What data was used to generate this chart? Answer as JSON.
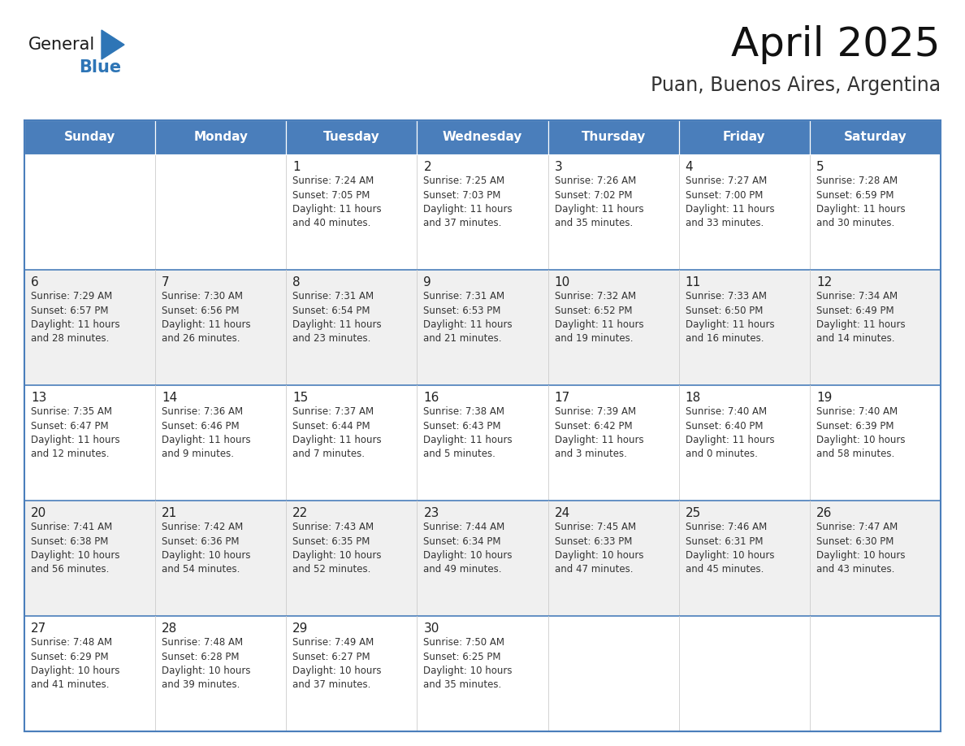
{
  "title": "April 2025",
  "subtitle": "Puan, Buenos Aires, Argentina",
  "header_color": "#4A7EBB",
  "header_text_color": "#FFFFFF",
  "border_color": "#4A7EBB",
  "row_separator_color": "#4A7EBB",
  "col_separator_color": "#CCCCCC",
  "text_color": "#333333",
  "day_num_color": "#222222",
  "row_bg_even": "#FFFFFF",
  "row_bg_odd": "#F0F0F0",
  "days_of_week": [
    "Sunday",
    "Monday",
    "Tuesday",
    "Wednesday",
    "Thursday",
    "Friday",
    "Saturday"
  ],
  "weeks": [
    [
      {
        "day": "",
        "info": ""
      },
      {
        "day": "",
        "info": ""
      },
      {
        "day": "1",
        "info": "Sunrise: 7:24 AM\nSunset: 7:05 PM\nDaylight: 11 hours\nand 40 minutes."
      },
      {
        "day": "2",
        "info": "Sunrise: 7:25 AM\nSunset: 7:03 PM\nDaylight: 11 hours\nand 37 minutes."
      },
      {
        "day": "3",
        "info": "Sunrise: 7:26 AM\nSunset: 7:02 PM\nDaylight: 11 hours\nand 35 minutes."
      },
      {
        "day": "4",
        "info": "Sunrise: 7:27 AM\nSunset: 7:00 PM\nDaylight: 11 hours\nand 33 minutes."
      },
      {
        "day": "5",
        "info": "Sunrise: 7:28 AM\nSunset: 6:59 PM\nDaylight: 11 hours\nand 30 minutes."
      }
    ],
    [
      {
        "day": "6",
        "info": "Sunrise: 7:29 AM\nSunset: 6:57 PM\nDaylight: 11 hours\nand 28 minutes."
      },
      {
        "day": "7",
        "info": "Sunrise: 7:30 AM\nSunset: 6:56 PM\nDaylight: 11 hours\nand 26 minutes."
      },
      {
        "day": "8",
        "info": "Sunrise: 7:31 AM\nSunset: 6:54 PM\nDaylight: 11 hours\nand 23 minutes."
      },
      {
        "day": "9",
        "info": "Sunrise: 7:31 AM\nSunset: 6:53 PM\nDaylight: 11 hours\nand 21 minutes."
      },
      {
        "day": "10",
        "info": "Sunrise: 7:32 AM\nSunset: 6:52 PM\nDaylight: 11 hours\nand 19 minutes."
      },
      {
        "day": "11",
        "info": "Sunrise: 7:33 AM\nSunset: 6:50 PM\nDaylight: 11 hours\nand 16 minutes."
      },
      {
        "day": "12",
        "info": "Sunrise: 7:34 AM\nSunset: 6:49 PM\nDaylight: 11 hours\nand 14 minutes."
      }
    ],
    [
      {
        "day": "13",
        "info": "Sunrise: 7:35 AM\nSunset: 6:47 PM\nDaylight: 11 hours\nand 12 minutes."
      },
      {
        "day": "14",
        "info": "Sunrise: 7:36 AM\nSunset: 6:46 PM\nDaylight: 11 hours\nand 9 minutes."
      },
      {
        "day": "15",
        "info": "Sunrise: 7:37 AM\nSunset: 6:44 PM\nDaylight: 11 hours\nand 7 minutes."
      },
      {
        "day": "16",
        "info": "Sunrise: 7:38 AM\nSunset: 6:43 PM\nDaylight: 11 hours\nand 5 minutes."
      },
      {
        "day": "17",
        "info": "Sunrise: 7:39 AM\nSunset: 6:42 PM\nDaylight: 11 hours\nand 3 minutes."
      },
      {
        "day": "18",
        "info": "Sunrise: 7:40 AM\nSunset: 6:40 PM\nDaylight: 11 hours\nand 0 minutes."
      },
      {
        "day": "19",
        "info": "Sunrise: 7:40 AM\nSunset: 6:39 PM\nDaylight: 10 hours\nand 58 minutes."
      }
    ],
    [
      {
        "day": "20",
        "info": "Sunrise: 7:41 AM\nSunset: 6:38 PM\nDaylight: 10 hours\nand 56 minutes."
      },
      {
        "day": "21",
        "info": "Sunrise: 7:42 AM\nSunset: 6:36 PM\nDaylight: 10 hours\nand 54 minutes."
      },
      {
        "day": "22",
        "info": "Sunrise: 7:43 AM\nSunset: 6:35 PM\nDaylight: 10 hours\nand 52 minutes."
      },
      {
        "day": "23",
        "info": "Sunrise: 7:44 AM\nSunset: 6:34 PM\nDaylight: 10 hours\nand 49 minutes."
      },
      {
        "day": "24",
        "info": "Sunrise: 7:45 AM\nSunset: 6:33 PM\nDaylight: 10 hours\nand 47 minutes."
      },
      {
        "day": "25",
        "info": "Sunrise: 7:46 AM\nSunset: 6:31 PM\nDaylight: 10 hours\nand 45 minutes."
      },
      {
        "day": "26",
        "info": "Sunrise: 7:47 AM\nSunset: 6:30 PM\nDaylight: 10 hours\nand 43 minutes."
      }
    ],
    [
      {
        "day": "27",
        "info": "Sunrise: 7:48 AM\nSunset: 6:29 PM\nDaylight: 10 hours\nand 41 minutes."
      },
      {
        "day": "28",
        "info": "Sunrise: 7:48 AM\nSunset: 6:28 PM\nDaylight: 10 hours\nand 39 minutes."
      },
      {
        "day": "29",
        "info": "Sunrise: 7:49 AM\nSunset: 6:27 PM\nDaylight: 10 hours\nand 37 minutes."
      },
      {
        "day": "30",
        "info": "Sunrise: 7:50 AM\nSunset: 6:25 PM\nDaylight: 10 hours\nand 35 minutes."
      },
      {
        "day": "",
        "info": ""
      },
      {
        "day": "",
        "info": ""
      },
      {
        "day": "",
        "info": ""
      }
    ]
  ],
  "logo_text_general": "General",
  "logo_text_blue": "Blue",
  "logo_color_general": "#1A1A1A",
  "logo_color_blue": "#2E75B6",
  "logo_triangle_color": "#2E75B6"
}
